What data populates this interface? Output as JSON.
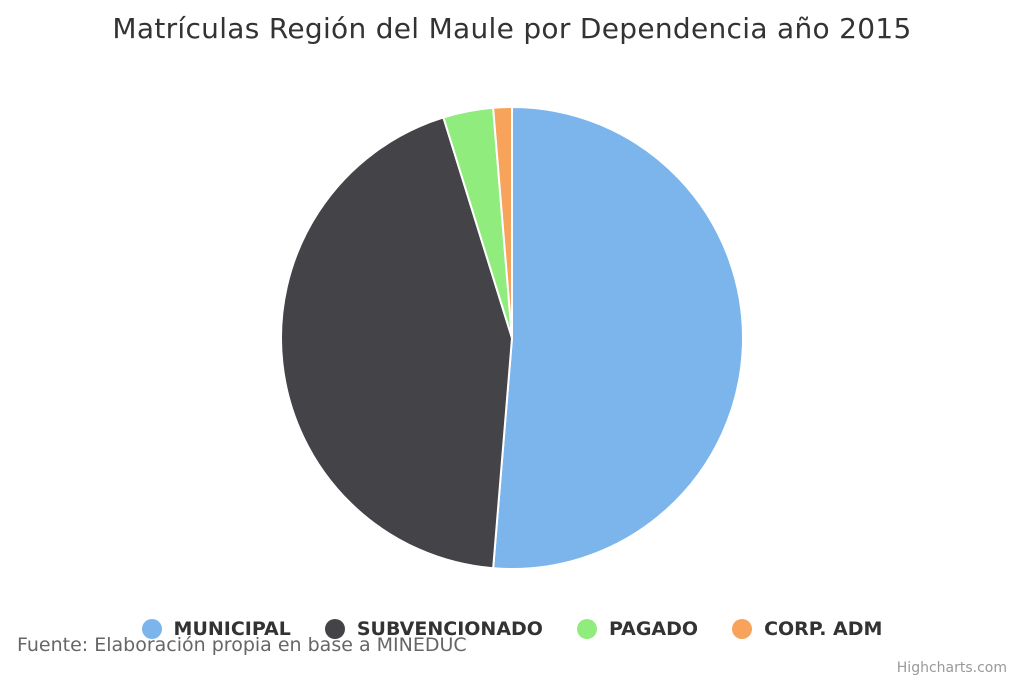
{
  "chart_data": {
    "type": "pie",
    "title": "Matrículas Región del Maule por Dependencia año 2015",
    "categories": [
      "MUNICIPAL",
      "SUBVENCIONADO",
      "PAGADO",
      "CORP. ADM"
    ],
    "values": [
      51.3,
      43.9,
      3.5,
      1.3
    ],
    "colors": [
      "#7cb5ec",
      "#434348",
      "#90ed7d",
      "#f7a35c"
    ],
    "legend": "bottom"
  },
  "credits": {
    "source": "Fuente: Elaboración propia en base a MINEDUC",
    "highcharts": "Highcharts.com"
  }
}
